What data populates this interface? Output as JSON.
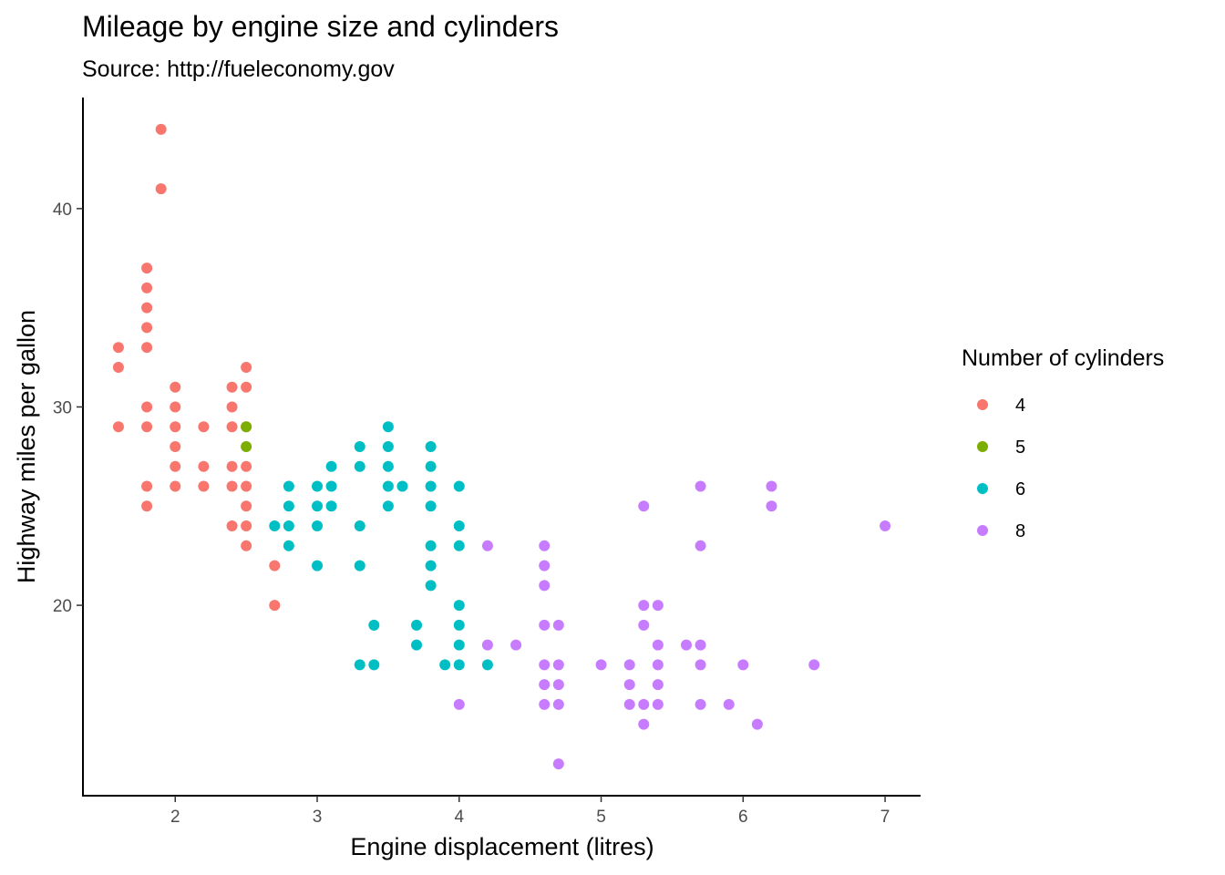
{
  "chart_data": {
    "type": "scatter",
    "title": "Mileage by engine size and cylinders",
    "subtitle": "Source: http://fueleconomy.gov",
    "xlabel": "Engine displacement (litres)",
    "ylabel": "Highway miles per gallon",
    "xlim": [
      1.35,
      7.25
    ],
    "ylim": [
      10.4,
      45.6
    ],
    "x_ticks": [
      2,
      3,
      4,
      5,
      6,
      7
    ],
    "y_ticks": [
      20,
      30,
      40
    ],
    "grid": false,
    "legend": {
      "title": "Number of cylinders",
      "placement": "right"
    },
    "series": [
      {
        "name": "4",
        "color": "#F8766D",
        "points": [
          [
            1.6,
            29
          ],
          [
            1.6,
            32
          ],
          [
            1.6,
            33
          ],
          [
            1.8,
            25
          ],
          [
            1.8,
            26
          ],
          [
            1.8,
            29
          ],
          [
            1.8,
            30
          ],
          [
            1.8,
            33
          ],
          [
            1.8,
            34
          ],
          [
            1.8,
            35
          ],
          [
            1.8,
            36
          ],
          [
            1.8,
            37
          ],
          [
            1.9,
            41
          ],
          [
            1.9,
            44
          ],
          [
            2.0,
            26
          ],
          [
            2.0,
            27
          ],
          [
            2.0,
            28
          ],
          [
            2.0,
            29
          ],
          [
            2.0,
            30
          ],
          [
            2.0,
            31
          ],
          [
            2.2,
            26
          ],
          [
            2.2,
            27
          ],
          [
            2.2,
            29
          ],
          [
            2.4,
            24
          ],
          [
            2.4,
            26
          ],
          [
            2.4,
            27
          ],
          [
            2.4,
            29
          ],
          [
            2.4,
            30
          ],
          [
            2.4,
            31
          ],
          [
            2.5,
            23
          ],
          [
            2.5,
            24
          ],
          [
            2.5,
            25
          ],
          [
            2.5,
            26
          ],
          [
            2.5,
            27
          ],
          [
            2.5,
            29
          ],
          [
            2.5,
            31
          ],
          [
            2.5,
            32
          ],
          [
            2.7,
            20
          ],
          [
            2.7,
            22
          ]
        ]
      },
      {
        "name": "5",
        "color": "#7CAE00",
        "points": [
          [
            2.5,
            28
          ],
          [
            2.5,
            29
          ]
        ]
      },
      {
        "name": "6",
        "color": "#00BFC4",
        "points": [
          [
            2.7,
            24
          ],
          [
            2.8,
            23
          ],
          [
            2.8,
            24
          ],
          [
            2.8,
            25
          ],
          [
            2.8,
            26
          ],
          [
            3.0,
            22
          ],
          [
            3.0,
            24
          ],
          [
            3.0,
            25
          ],
          [
            3.0,
            26
          ],
          [
            3.1,
            25
          ],
          [
            3.1,
            26
          ],
          [
            3.1,
            27
          ],
          [
            3.3,
            17
          ],
          [
            3.3,
            22
          ],
          [
            3.3,
            24
          ],
          [
            3.3,
            27
          ],
          [
            3.3,
            28
          ],
          [
            3.4,
            17
          ],
          [
            3.4,
            19
          ],
          [
            3.5,
            25
          ],
          [
            3.5,
            26
          ],
          [
            3.5,
            27
          ],
          [
            3.5,
            28
          ],
          [
            3.5,
            29
          ],
          [
            3.6,
            26
          ],
          [
            3.7,
            18
          ],
          [
            3.7,
            19
          ],
          [
            3.8,
            21
          ],
          [
            3.8,
            22
          ],
          [
            3.8,
            23
          ],
          [
            3.8,
            25
          ],
          [
            3.8,
            26
          ],
          [
            3.8,
            27
          ],
          [
            3.8,
            28
          ],
          [
            3.9,
            17
          ],
          [
            4.0,
            17
          ],
          [
            4.0,
            18
          ],
          [
            4.0,
            19
          ],
          [
            4.0,
            20
          ],
          [
            4.0,
            23
          ],
          [
            4.0,
            24
          ],
          [
            4.0,
            26
          ],
          [
            4.2,
            17
          ]
        ]
      },
      {
        "name": "8",
        "color": "#C77CFF",
        "points": [
          [
            4.0,
            15
          ],
          [
            4.2,
            18
          ],
          [
            4.2,
            23
          ],
          [
            4.4,
            18
          ],
          [
            4.6,
            15
          ],
          [
            4.6,
            16
          ],
          [
            4.6,
            17
          ],
          [
            4.6,
            19
          ],
          [
            4.6,
            21
          ],
          [
            4.6,
            22
          ],
          [
            4.6,
            23
          ],
          [
            4.7,
            12
          ],
          [
            4.7,
            15
          ],
          [
            4.7,
            16
          ],
          [
            4.7,
            17
          ],
          [
            4.7,
            19
          ],
          [
            5.0,
            17
          ],
          [
            5.2,
            15
          ],
          [
            5.2,
            16
          ],
          [
            5.2,
            17
          ],
          [
            5.3,
            14
          ],
          [
            5.3,
            15
          ],
          [
            5.3,
            19
          ],
          [
            5.3,
            20
          ],
          [
            5.3,
            25
          ],
          [
            5.4,
            15
          ],
          [
            5.4,
            16
          ],
          [
            5.4,
            17
          ],
          [
            5.4,
            18
          ],
          [
            5.4,
            20
          ],
          [
            5.6,
            18
          ],
          [
            5.7,
            15
          ],
          [
            5.7,
            17
          ],
          [
            5.7,
            18
          ],
          [
            5.7,
            23
          ],
          [
            5.7,
            26
          ],
          [
            5.9,
            15
          ],
          [
            6.0,
            17
          ],
          [
            6.1,
            14
          ],
          [
            6.2,
            25
          ],
          [
            6.2,
            26
          ],
          [
            6.5,
            17
          ],
          [
            7.0,
            24
          ]
        ]
      }
    ]
  }
}
